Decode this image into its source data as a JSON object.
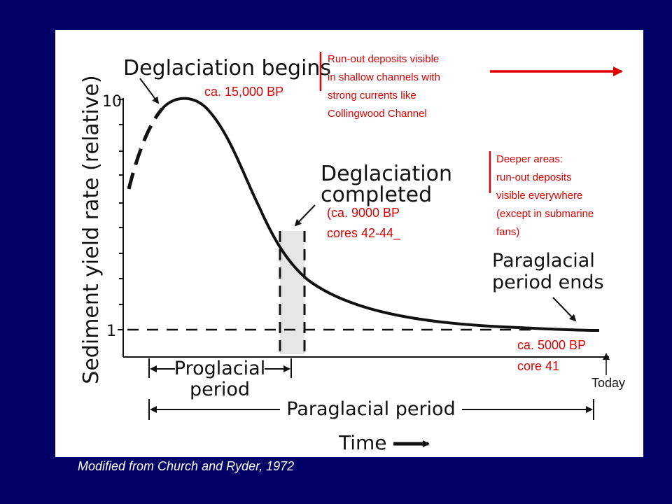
{
  "colors": {
    "slide_background": "#000066",
    "panel_background": "#ffffff",
    "curve": "#111111",
    "annotation_red": "#e00000",
    "shaded_band": "#e6e6e6"
  },
  "chart_data": {
    "type": "line",
    "title": "",
    "xlabel": "Time",
    "ylabel": "Sediment yield rate (relative)",
    "y_ticks": [
      "10",
      "1"
    ],
    "y_scale": "log",
    "ylim": [
      1,
      10
    ],
    "grid": false,
    "legend": "none",
    "series": [
      {
        "style": "dashed-then-solid",
        "shape": "rises steeply to a peak near 10 shortly after deglaciation begins, then declines, flattening toward 1 by the end of the paraglacial period"
      }
    ],
    "baseline": {
      "value": 1,
      "style": "dashed"
    },
    "shaded_region": "Deglaciation completed",
    "annotations": {
      "deglaciation_begins": "Deglaciation begins",
      "deglaciation_completed_1": "Deglaciation",
      "deglaciation_completed_2": "completed",
      "paraglacial_ends_1": "Paraglacial",
      "paraglacial_ends_2": "period ends",
      "proglacial_period_1": "Proglacial",
      "proglacial_period_2": "period",
      "paraglacial_period": "Paraglacial period"
    },
    "red_notes": {
      "ca_15000": "ca. 15,000 BP",
      "runout_1": "Run-out deposits visible",
      "runout_2": "in shallow channels with",
      "runout_3": "strong currents like",
      "runout_4": "Collingwood Channel",
      "deeper_1": "Deeper areas:",
      "deeper_2": "run-out deposits",
      "deeper_3": "visible everywhere",
      "deeper_4": "(except in submarine",
      "deeper_5": "fans)",
      "ca_9000_1": "(ca. 9000 BP",
      "ca_9000_2": "cores 42-44_",
      "ca_5000_1": "ca. 5000 BP",
      "ca_5000_2": "core 41"
    },
    "today_label": "Today"
  },
  "caption": "Modified from Church and Ryder, 1972"
}
